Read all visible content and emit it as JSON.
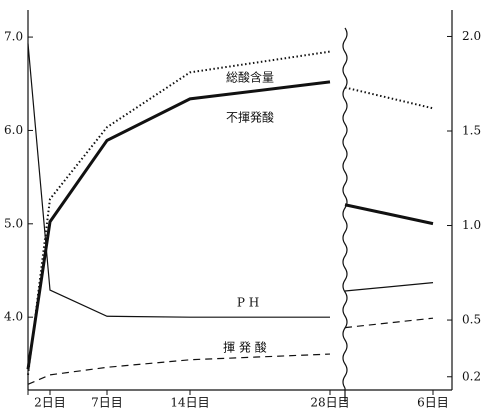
{
  "chart_data": {
    "type": "line",
    "categories": [
      null,
      "2日目",
      "7日目",
      "14日目",
      "28日目",
      null,
      "6日目"
    ],
    "axis_break_after": 4,
    "ylim": [
      3.22,
      7.29
    ],
    "yticks": [
      {
        "value": 4,
        "label": "4.0"
      },
      {
        "value": 5,
        "label": "5.0"
      },
      {
        "value": 6,
        "label": "6.0"
      },
      {
        "value": 7,
        "label": "7.0"
      }
    ],
    "y2lim": [
      0.13,
      2.14
    ],
    "y2ticks": [
      0.2,
      0.5,
      {
        "value": 1,
        "label": "1.0"
      },
      1.5,
      {
        "value": 2,
        "label": "2.0"
      }
    ],
    "series": [
      {
        "name": "総酸含量",
        "color": "#111111",
        "style": "dotted",
        "axis": "y2",
        "values": [
          0.21,
          1.14,
          1.52,
          1.81,
          1.92,
          1.73,
          1.62
        ]
      },
      {
        "name": "不揮発酸",
        "color": "#111111",
        "style": "thick",
        "axis": "y2",
        "values": [
          0.24,
          1.02,
          1.45,
          1.67,
          1.76,
          1.11,
          1.01
        ]
      },
      {
        "name": "P H",
        "color": "#111111",
        "style": "solid",
        "values": [
          6.93,
          4.29,
          4.01,
          4.0,
          4.0,
          4.28,
          4.37
        ]
      },
      {
        "name": "揮 発 酸",
        "color": "#111111",
        "style": "dashed",
        "axis": "y2",
        "values": [
          0.16,
          0.21,
          0.25,
          0.29,
          0.32,
          0.46,
          0.51
        ]
      }
    ]
  }
}
